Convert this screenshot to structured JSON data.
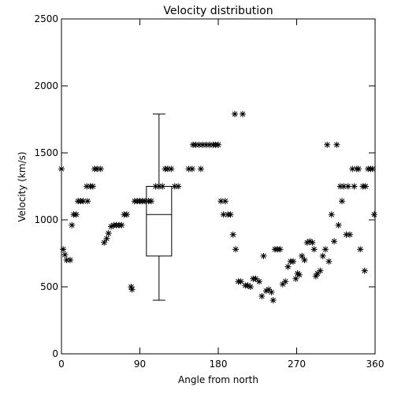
{
  "chart_data": {
    "type": "scatter",
    "title": "Velocity distribution",
    "xlabel": "Angle from north",
    "ylabel": "Velocity (km/s)",
    "xlim": [
      0,
      360
    ],
    "ylim": [
      0,
      2500
    ],
    "xticks": [
      0,
      90,
      180,
      270,
      360
    ],
    "yticks": [
      0,
      500,
      1000,
      1500,
      2000,
      2500
    ],
    "grid": false,
    "marker": "asterisk",
    "color": "#000000",
    "points": [
      [
        0,
        1380
      ],
      [
        2,
        780
      ],
      [
        4,
        740
      ],
      [
        6,
        700
      ],
      [
        10,
        700
      ],
      [
        12,
        960
      ],
      [
        14,
        1040
      ],
      [
        17,
        1040
      ],
      [
        19,
        1140
      ],
      [
        22,
        1140
      ],
      [
        25,
        1140
      ],
      [
        30,
        1140
      ],
      [
        29,
        1250
      ],
      [
        33,
        1250
      ],
      [
        36,
        1250
      ],
      [
        38,
        1380
      ],
      [
        41,
        1380
      ],
      [
        45,
        1380
      ],
      [
        49,
        830
      ],
      [
        52,
        860
      ],
      [
        54,
        900
      ],
      [
        57,
        950
      ],
      [
        60,
        960
      ],
      [
        63,
        960
      ],
      [
        66,
        960
      ],
      [
        69,
        960
      ],
      [
        72,
        1040
      ],
      [
        75,
        1040
      ],
      [
        80,
        500
      ],
      [
        81,
        480
      ],
      [
        84,
        1140
      ],
      [
        87,
        1140
      ],
      [
        90,
        1140
      ],
      [
        93,
        1140
      ],
      [
        96,
        1140
      ],
      [
        100,
        1140
      ],
      [
        103,
        1140
      ],
      [
        108,
        1250
      ],
      [
        112,
        1250
      ],
      [
        116,
        1250
      ],
      [
        119,
        1380
      ],
      [
        122,
        1380
      ],
      [
        126,
        1380
      ],
      [
        130,
        1250
      ],
      [
        134,
        1250
      ],
      [
        146,
        1380
      ],
      [
        150,
        1380
      ],
      [
        151,
        1560
      ],
      [
        154,
        1560
      ],
      [
        158,
        1560
      ],
      [
        160,
        1380
      ],
      [
        162,
        1560
      ],
      [
        166,
        1560
      ],
      [
        170,
        1560
      ],
      [
        174,
        1560
      ],
      [
        177,
        1560
      ],
      [
        180,
        1560
      ],
      [
        183,
        1140
      ],
      [
        186,
        1040
      ],
      [
        188,
        1140
      ],
      [
        191,
        1040
      ],
      [
        194,
        1040
      ],
      [
        197,
        890
      ],
      [
        199,
        1790
      ],
      [
        200,
        780
      ],
      [
        203,
        540
      ],
      [
        206,
        540
      ],
      [
        208,
        1790
      ],
      [
        211,
        510
      ],
      [
        214,
        510
      ],
      [
        217,
        500
      ],
      [
        220,
        560
      ],
      [
        223,
        560
      ],
      [
        227,
        540
      ],
      [
        230,
        430
      ],
      [
        232,
        730
      ],
      [
        235,
        470
      ],
      [
        238,
        480
      ],
      [
        241,
        460
      ],
      [
        243,
        400
      ],
      [
        245,
        780
      ],
      [
        248,
        780
      ],
      [
        251,
        780
      ],
      [
        254,
        520
      ],
      [
        257,
        540
      ],
      [
        260,
        650
      ],
      [
        263,
        690
      ],
      [
        266,
        690
      ],
      [
        269,
        560
      ],
      [
        271,
        600
      ],
      [
        273,
        590
      ],
      [
        276,
        730
      ],
      [
        279,
        700
      ],
      [
        282,
        830
      ],
      [
        285,
        840
      ],
      [
        288,
        830
      ],
      [
        290,
        780
      ],
      [
        292,
        580
      ],
      [
        294,
        600
      ],
      [
        297,
        620
      ],
      [
        300,
        730
      ],
      [
        303,
        780
      ],
      [
        305,
        1560
      ],
      [
        307,
        690
      ],
      [
        310,
        1040
      ],
      [
        313,
        840
      ],
      [
        316,
        1560
      ],
      [
        318,
        960
      ],
      [
        320,
        1250
      ],
      [
        322,
        1140
      ],
      [
        324,
        1250
      ],
      [
        327,
        890
      ],
      [
        329,
        1250
      ],
      [
        331,
        890
      ],
      [
        334,
        1380
      ],
      [
        336,
        1250
      ],
      [
        339,
        1380
      ],
      [
        341,
        1380
      ],
      [
        343,
        780
      ],
      [
        346,
        1250
      ],
      [
        348,
        620
      ],
      [
        349,
        1250
      ],
      [
        352,
        1380
      ],
      [
        355,
        1380
      ],
      [
        357,
        1380
      ],
      [
        359,
        1040
      ]
    ],
    "boxplot": {
      "x": 112,
      "min": 400,
      "q1": 730,
      "median": 1040,
      "q3": 1250,
      "max": 1790
    }
  }
}
